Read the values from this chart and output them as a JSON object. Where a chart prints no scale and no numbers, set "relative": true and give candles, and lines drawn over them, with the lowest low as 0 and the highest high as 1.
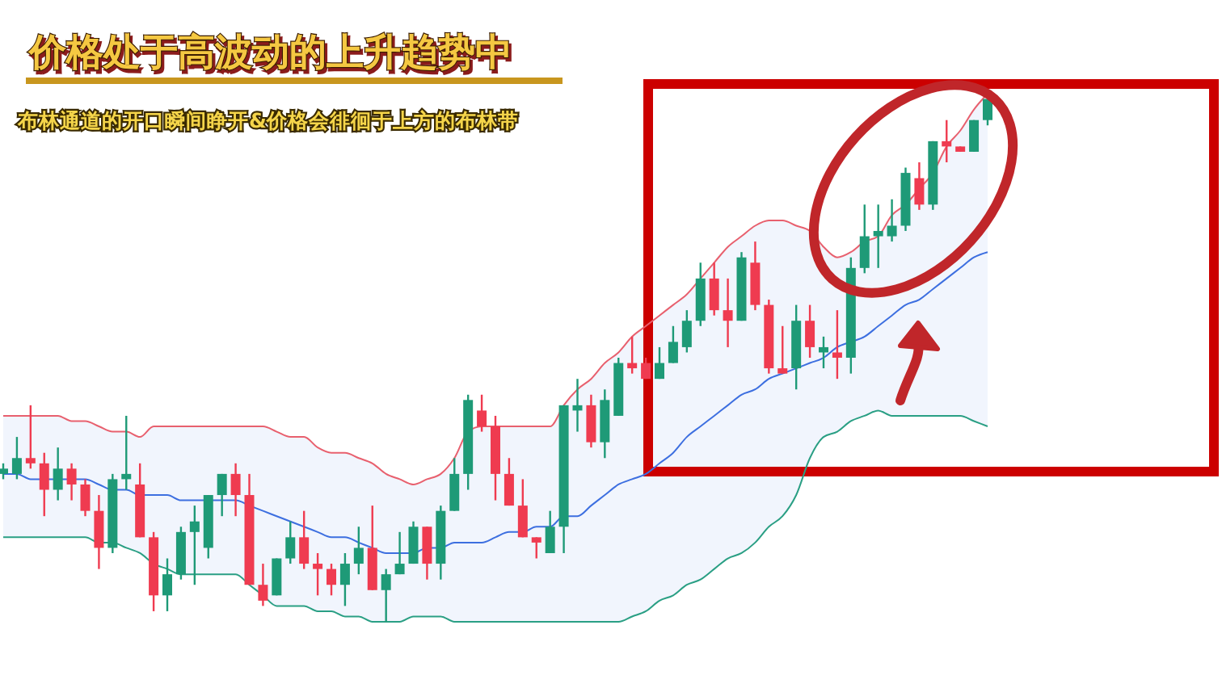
{
  "chart_data": {
    "type": "candlestick",
    "title": "价格处于高波动的上升趋势中",
    "subtitle": "布林通道的开口瞬间睁开&价格会徘徊于上方的布林带",
    "relative": true,
    "categories": [
      null,
      null,
      null,
      null,
      null,
      null,
      null,
      null,
      null,
      null,
      null,
      null,
      null,
      null,
      null,
      null,
      null,
      null,
      null,
      null,
      null,
      null,
      null,
      null,
      null,
      null,
      null,
      null,
      null,
      null,
      null,
      null,
      null,
      null,
      null,
      null,
      null,
      null,
      null,
      null,
      null,
      null,
      null,
      null,
      null,
      null,
      null,
      null,
      null,
      null,
      null,
      null,
      null,
      null,
      null,
      null,
      null,
      null,
      null,
      null,
      null,
      null,
      null,
      null,
      null,
      null,
      null,
      null,
      null,
      null,
      null,
      null,
      null
    ],
    "ohlc": [
      [
        0.28,
        0.3,
        0.27,
        0.29
      ],
      [
        0.28,
        0.35,
        0.27,
        0.31
      ],
      [
        0.31,
        0.41,
        0.29,
        0.3
      ],
      [
        0.3,
        0.32,
        0.2,
        0.25
      ],
      [
        0.25,
        0.33,
        0.23,
        0.29
      ],
      [
        0.29,
        0.3,
        0.23,
        0.26
      ],
      [
        0.26,
        0.27,
        0.2,
        0.21
      ],
      [
        0.21,
        0.24,
        0.1,
        0.14
      ],
      [
        0.14,
        0.28,
        0.13,
        0.27
      ],
      [
        0.27,
        0.39,
        0.25,
        0.28
      ],
      [
        0.26,
        0.3,
        0.16,
        0.16
      ],
      [
        0.16,
        0.17,
        0.02,
        0.05
      ],
      [
        0.05,
        0.12,
        0.02,
        0.09
      ],
      [
        0.09,
        0.18,
        0.08,
        0.17
      ],
      [
        0.17,
        0.22,
        0.07,
        0.19
      ],
      [
        0.14,
        0.24,
        0.12,
        0.24
      ],
      [
        0.24,
        0.28,
        0.2,
        0.28
      ],
      [
        0.28,
        0.3,
        0.2,
        0.24
      ],
      [
        0.24,
        0.28,
        0.07,
        0.07
      ],
      [
        0.07,
        0.11,
        0.03,
        0.04
      ],
      [
        0.05,
        0.12,
        0.05,
        0.12
      ],
      [
        0.12,
        0.19,
        0.11,
        0.16
      ],
      [
        0.16,
        0.21,
        0.1,
        0.11
      ],
      [
        0.11,
        0.13,
        0.05,
        0.1
      ],
      [
        0.1,
        0.11,
        0.05,
        0.07
      ],
      [
        0.07,
        0.13,
        0.03,
        0.11
      ],
      [
        0.11,
        0.18,
        0.09,
        0.14
      ],
      [
        0.14,
        0.22,
        0.06,
        0.06
      ],
      [
        0.06,
        0.1,
        0,
        0.09
      ],
      [
        0.09,
        0.17,
        0.09,
        0.11
      ],
      [
        0.11,
        0.19,
        0.11,
        0.18
      ],
      [
        0.18,
        0.18,
        0.08,
        0.11
      ],
      [
        0.11,
        0.22,
        0.08,
        0.21
      ],
      [
        0.21,
        0.31,
        0.21,
        0.28
      ],
      [
        0.28,
        0.43,
        0.25,
        0.42
      ],
      [
        0.4,
        0.43,
        0.36,
        0.37
      ],
      [
        0.37,
        0.39,
        0.23,
        0.28
      ],
      [
        0.28,
        0.31,
        0.22,
        0.22
      ],
      [
        0.22,
        0.27,
        0.16,
        0.16
      ],
      [
        0.16,
        0.16,
        0.12,
        0.15
      ],
      [
        0.13,
        0.21,
        0.13,
        0.18
      ],
      [
        0.18,
        0.41,
        0.13,
        0.41
      ],
      [
        0.4,
        0.46,
        0.36,
        0.41
      ],
      [
        0.41,
        0.43,
        0.33,
        0.34
      ],
      [
        0.34,
        0.44,
        0.31,
        0.42
      ],
      [
        0.39,
        0.5,
        0.39,
        0.49
      ],
      [
        0.49,
        0.54,
        0.47,
        0.48
      ],
      [
        0.49,
        0.5,
        0.46,
        0.46
      ],
      [
        0.46,
        0.52,
        0.46,
        0.49
      ],
      [
        0.49,
        0.56,
        0.49,
        0.53
      ],
      [
        0.52,
        0.59,
        0.51,
        0.57
      ],
      [
        0.57,
        0.68,
        0.56,
        0.65
      ],
      [
        0.65,
        0.68,
        0.58,
        0.59
      ],
      [
        0.59,
        0.65,
        0.52,
        0.57
      ],
      [
        0.57,
        0.7,
        0.57,
        0.69
      ],
      [
        0.68,
        0.72,
        0.59,
        0.6
      ],
      [
        0.6,
        0.61,
        0.47,
        0.48
      ],
      [
        0.48,
        0.56,
        0.47,
        0.47
      ],
      [
        0.48,
        0.6,
        0.44,
        0.57
      ],
      [
        0.57,
        0.6,
        0.5,
        0.52
      ],
      [
        0.51,
        0.54,
        0.48,
        0.52
      ],
      [
        0.51,
        0.59,
        0.46,
        0.5
      ],
      [
        0.5,
        0.69,
        0.47,
        0.67
      ],
      [
        0.67,
        0.79,
        0.66,
        0.73
      ],
      [
        0.73,
        0.79,
        0.67,
        0.74
      ],
      [
        0.73,
        0.8,
        0.72,
        0.75
      ],
      [
        0.75,
        0.86,
        0.74,
        0.85
      ],
      [
        0.84,
        0.87,
        0.78,
        0.79
      ],
      [
        0.79,
        0.91,
        0.78,
        0.91
      ],
      [
        0.91,
        0.95,
        0.87,
        0.9
      ],
      [
        0.9,
        0.9,
        0.89,
        0.89
      ],
      [
        0.89,
        0.95,
        0.89,
        0.95
      ],
      [
        0.95,
        1,
        0.94,
        0.99
      ]
    ],
    "colors": [
      "#1e9a77",
      "#1e9a77",
      "#ef3b50",
      "#ef3b50",
      "#1e9a77",
      "#ef3b50",
      "#ef3b50",
      "#ef3b50",
      "#1e9a77",
      "#1e9a77",
      "#ef3b50",
      "#ef3b50",
      "#1e9a77",
      "#1e9a77",
      "#1e9a77",
      "#1e9a77",
      "#1e9a77",
      "#ef3b50",
      "#ef3b50",
      "#ef3b50",
      "#1e9a77",
      "#1e9a77",
      "#ef3b50",
      "#ef3b50",
      "#ef3b50",
      "#1e9a77",
      "#1e9a77",
      "#ef3b50",
      "#1e9a77",
      "#1e9a77",
      "#1e9a77",
      "#ef3b50",
      "#1e9a77",
      "#1e9a77",
      "#1e9a77",
      "#ef3b50",
      "#ef3b50",
      "#ef3b50",
      "#ef3b50",
      "#ef3b50",
      "#1e9a77",
      "#1e9a77",
      "#1e9a77",
      "#ef3b50",
      "#1e9a77",
      "#1e9a77",
      "#ef3b50",
      "#ef3b50",
      "#1e9a77",
      "#1e9a77",
      "#1e9a77",
      "#1e9a77",
      "#ef3b50",
      "#ef3b50",
      "#1e9a77",
      "#ef3b50",
      "#ef3b50",
      "#ef3b50",
      "#1e9a77",
      "#ef3b50",
      "#1e9a77",
      "#ef3b50",
      "#1e9a77",
      "#1e9a77",
      "#1e9a77",
      "#1e9a77",
      "#1e9a77",
      "#ef3b50",
      "#1e9a77",
      "#ef3b50",
      "#ef3b50",
      "#1e9a77",
      "#1e9a77"
    ],
    "series": [
      {
        "type": "line",
        "color": "#e8606e",
        "values": [
          0.39,
          0.39,
          0.39,
          0.39,
          0.39,
          0.38,
          0.38,
          0.37,
          0.36,
          0.36,
          0.35,
          0.37,
          0.37,
          0.37,
          0.37,
          0.37,
          0.37,
          0.37,
          0.37,
          0.37,
          0.36,
          0.35,
          0.35,
          0.33,
          0.32,
          0.32,
          0.31,
          0.3,
          0.28,
          0.27,
          0.26,
          0.27,
          0.28,
          0.31,
          0.36,
          0.37,
          0.37,
          0.37,
          0.37,
          0.37,
          0.37,
          0.41,
          0.44,
          0.46,
          0.49,
          0.51,
          0.54,
          0.56,
          0.58,
          0.6,
          0.62,
          0.65,
          0.68,
          0.71,
          0.73,
          0.75,
          0.76,
          0.76,
          0.75,
          0.74,
          0.71,
          0.69,
          0.7,
          0.72,
          0.73,
          0.77,
          0.79,
          0.82,
          0.85,
          0.9,
          0.93,
          0.97,
          1.0
        ]
      },
      {
        "type": "line",
        "color": "#3d6fe0",
        "values": [
          0.28,
          0.28,
          0.27,
          0.27,
          0.27,
          0.27,
          0.27,
          0.26,
          0.25,
          0.25,
          0.24,
          0.24,
          0.24,
          0.23,
          0.23,
          0.23,
          0.23,
          0.23,
          0.22,
          0.21,
          0.2,
          0.19,
          0.18,
          0.17,
          0.16,
          0.16,
          0.15,
          0.14,
          0.13,
          0.13,
          0.13,
          0.14,
          0.14,
          0.15,
          0.15,
          0.15,
          0.16,
          0.17,
          0.17,
          0.18,
          0.18,
          0.2,
          0.2,
          0.22,
          0.24,
          0.26,
          0.27,
          0.28,
          0.3,
          0.32,
          0.35,
          0.37,
          0.39,
          0.41,
          0.43,
          0.44,
          0.46,
          0.47,
          0.48,
          0.49,
          0.5,
          0.52,
          0.53,
          0.54,
          0.56,
          0.58,
          0.6,
          0.61,
          0.63,
          0.65,
          0.67,
          0.69,
          0.7
        ],
        "upper": [
          0.39,
          0.39,
          0.39,
          0.39,
          0.39,
          0.38,
          0.38,
          0.37,
          0.36,
          0.36,
          0.35,
          0.37,
          0.37,
          0.37,
          0.37,
          0.37,
          0.37,
          0.37,
          0.37,
          0.37,
          0.36,
          0.35,
          0.35,
          0.33,
          0.32,
          0.32,
          0.31,
          0.3,
          0.28,
          0.27,
          0.26,
          0.27,
          0.28,
          0.31,
          0.36,
          0.37,
          0.37,
          0.37,
          0.37,
          0.37,
          0.37,
          0.41,
          0.44,
          0.46,
          0.49,
          0.51,
          0.54,
          0.56,
          0.58,
          0.6,
          0.62,
          0.65,
          0.68,
          0.71,
          0.73,
          0.75,
          0.76,
          0.76,
          0.75,
          0.74,
          0.71,
          0.69,
          0.7,
          0.72,
          0.73,
          0.77,
          0.79,
          0.82,
          0.85,
          0.9,
          0.93,
          0.97,
          1.0
        ],
        "lower": [
          0.16,
          0.16,
          0.16,
          0.16,
          0.16,
          0.16,
          0.16,
          0.15,
          0.15,
          0.14,
          0.13,
          0.11,
          0.1,
          0.09,
          0.09,
          0.09,
          0.09,
          0.09,
          0.07,
          0.05,
          0.03,
          0.03,
          0.03,
          0.02,
          0.02,
          0.01,
          0.01,
          0,
          0,
          0,
          0.01,
          0.01,
          0.01,
          0,
          0,
          0,
          0,
          0,
          0,
          0,
          0,
          0,
          0,
          0,
          0,
          0,
          0.01,
          0.02,
          0.04,
          0.05,
          0.07,
          0.08,
          0.1,
          0.12,
          0.13,
          0.15,
          0.18,
          0.2,
          0.24,
          0.31,
          0.35,
          0.36,
          0.38,
          0.39,
          0.4,
          0.39,
          0.39,
          0.39,
          0.39,
          0.39,
          0.39,
          0.38,
          0.37
        ]
      },
      {
        "type": "line",
        "color": "#2a9f84",
        "values": [
          0.16,
          0.16,
          0.16,
          0.16,
          0.16,
          0.16,
          0.16,
          0.15,
          0.15,
          0.14,
          0.13,
          0.11,
          0.1,
          0.09,
          0.09,
          0.09,
          0.09,
          0.09,
          0.07,
          0.05,
          0.03,
          0.03,
          0.03,
          0.02,
          0.02,
          0.01,
          0.01,
          0,
          0,
          0,
          0.01,
          0.01,
          0.01,
          0,
          0,
          0,
          0,
          0,
          0,
          0,
          0,
          0,
          0,
          0,
          0,
          0,
          0.01,
          0.02,
          0.04,
          0.05,
          0.07,
          0.08,
          0.1,
          0.12,
          0.13,
          0.15,
          0.18,
          0.2,
          0.24,
          0.31,
          0.35,
          0.36,
          0.38,
          0.39,
          0.4,
          0.39,
          0.39,
          0.39,
          0.39,
          0.39,
          0.39,
          0.38,
          0.37
        ]
      }
    ]
  }
}
